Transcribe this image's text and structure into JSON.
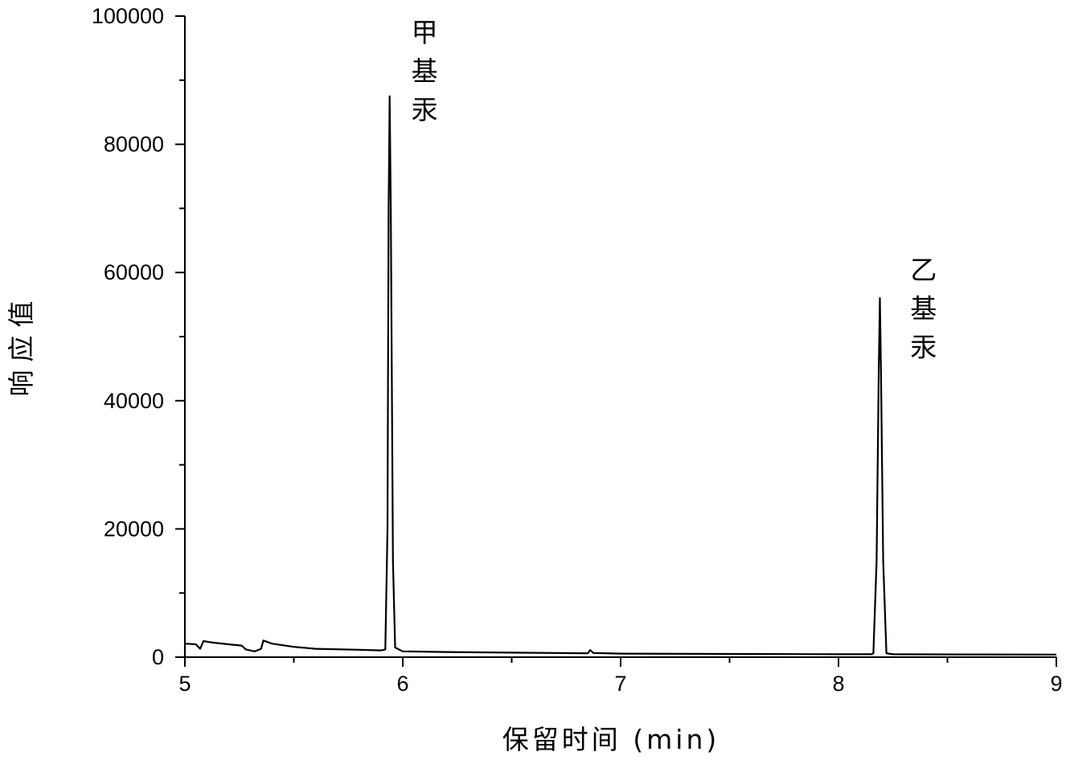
{
  "chart_data": {
    "type": "line",
    "xlabel": "保留时间 (min)",
    "ylabel": "响应值",
    "xlim": [
      5,
      9
    ],
    "ylim": [
      0,
      100000
    ],
    "x_ticks": [
      "5",
      "6",
      "7",
      "8",
      "9"
    ],
    "y_ticks": [
      "0",
      "20000",
      "40000",
      "60000",
      "80000",
      "100000"
    ],
    "grid": false,
    "series": [
      {
        "color": "#000000",
        "points": [
          [
            5.0,
            2100
          ],
          [
            5.05,
            2000
          ],
          [
            5.07,
            1300
          ],
          [
            5.085,
            2500
          ],
          [
            5.12,
            2300
          ],
          [
            5.2,
            2000
          ],
          [
            5.26,
            1800
          ],
          [
            5.28,
            1200
          ],
          [
            5.32,
            900
          ],
          [
            5.35,
            1300
          ],
          [
            5.36,
            2600
          ],
          [
            5.4,
            2100
          ],
          [
            5.5,
            1600
          ],
          [
            5.6,
            1300
          ],
          [
            5.8,
            1150
          ],
          [
            5.9,
            1050
          ],
          [
            5.92,
            1200
          ],
          [
            5.93,
            20000
          ],
          [
            5.935,
            70000
          ],
          [
            5.94,
            87500
          ],
          [
            5.945,
            70000
          ],
          [
            5.955,
            15000
          ],
          [
            5.965,
            1500
          ],
          [
            6.0,
            900
          ],
          [
            6.2,
            800
          ],
          [
            6.5,
            700
          ],
          [
            6.85,
            600
          ],
          [
            6.86,
            1100
          ],
          [
            6.875,
            650
          ],
          [
            7.0,
            550
          ],
          [
            7.5,
            500
          ],
          [
            8.0,
            450
          ],
          [
            8.15,
            450
          ],
          [
            8.16,
            600
          ],
          [
            8.175,
            15000
          ],
          [
            8.185,
            45000
          ],
          [
            8.19,
            56000
          ],
          [
            8.195,
            45000
          ],
          [
            8.205,
            15000
          ],
          [
            8.22,
            600
          ],
          [
            8.25,
            450
          ],
          [
            8.5,
            420
          ],
          [
            9.0,
            400
          ]
        ]
      }
    ],
    "annotations": [
      {
        "chars": [
          "甲",
          "基",
          "汞"
        ],
        "x": 6.1,
        "y": 100000
      },
      {
        "chars": [
          "乙",
          "基",
          "汞"
        ],
        "x": 8.39,
        "y": 63000
      }
    ]
  }
}
